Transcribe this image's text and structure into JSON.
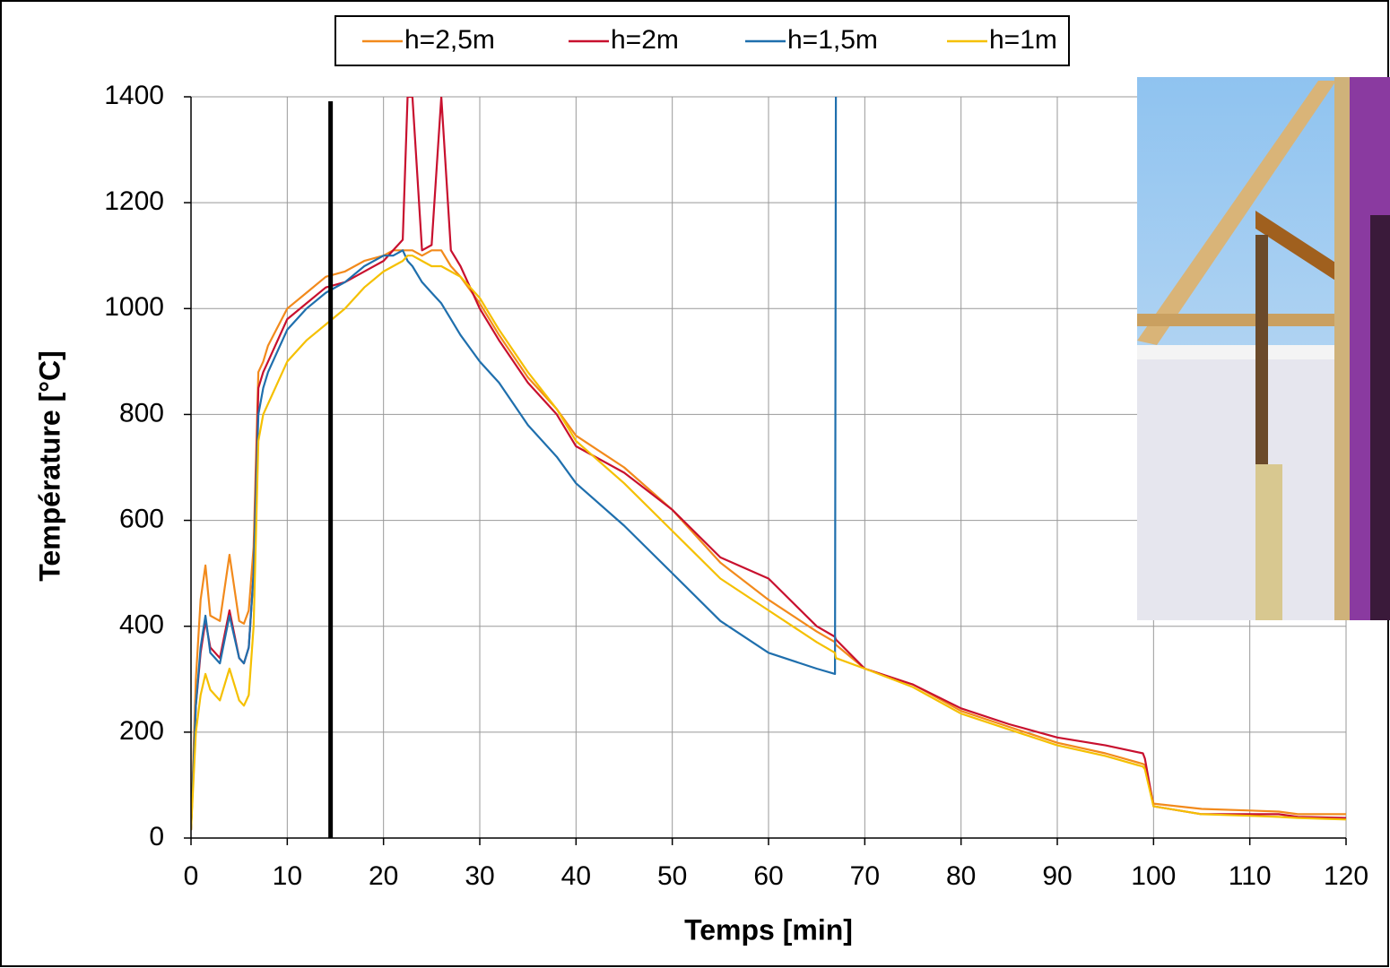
{
  "chart_data": {
    "type": "line",
    "x_label": "Temps [min]",
    "y_label": "Température [°C]",
    "x": [
      0,
      0.5,
      1,
      1.5,
      2,
      3,
      4,
      5,
      5.5,
      6,
      6.5,
      7,
      7.5,
      8,
      10,
      12,
      14,
      16,
      18,
      20,
      21,
      22,
      22.5,
      23,
      24,
      25,
      26,
      27,
      28,
      30,
      32,
      35,
      38,
      40,
      45,
      50,
      55,
      60,
      65,
      66.9,
      67,
      70,
      75,
      80,
      85,
      90,
      95,
      98.9,
      99.1,
      100,
      105,
      110,
      113,
      115,
      120
    ],
    "series": [
      {
        "name": "h=2,5m",
        "color": "#f28a1c",
        "values": [
          15,
          300,
          450,
          515,
          420,
          410,
          535,
          410,
          405,
          430,
          550,
          880,
          900,
          930,
          1000,
          1030,
          1060,
          1070,
          1090,
          1100,
          1110,
          1110,
          1110,
          1110,
          1100,
          1110,
          1110,
          1080,
          1060,
          1010,
          950,
          870,
          810,
          760,
          700,
          620,
          520,
          450,
          390,
          370,
          365,
          320,
          290,
          240,
          210,
          180,
          160,
          140,
          138,
          65,
          55,
          52,
          50,
          45,
          45
        ]
      },
      {
        "name": "h=2m",
        "color": "#c8102e",
        "values": [
          15,
          250,
          350,
          410,
          360,
          340,
          430,
          340,
          330,
          360,
          500,
          850,
          880,
          900,
          980,
          1010,
          1040,
          1050,
          1070,
          1090,
          1110,
          1130,
          1400,
          1400,
          1110,
          1120,
          1400,
          1110,
          1080,
          1000,
          940,
          860,
          800,
          740,
          690,
          620,
          530,
          490,
          400,
          380,
          375,
          320,
          290,
          245,
          215,
          190,
          175,
          160,
          150,
          60,
          45,
          45,
          45,
          40,
          38
        ]
      },
      {
        "name": "h=1,5m",
        "color": "#1f6fad",
        "values": [
          15,
          250,
          360,
          420,
          350,
          330,
          420,
          340,
          330,
          360,
          500,
          800,
          850,
          880,
          960,
          1000,
          1030,
          1050,
          1080,
          1100,
          1100,
          1110,
          1090,
          1080,
          1050,
          1030,
          1010,
          980,
          950,
          900,
          860,
          780,
          720,
          670,
          590,
          500,
          410,
          350,
          320,
          310,
          1400,
          null,
          null,
          null,
          null,
          null,
          null,
          null,
          null,
          null,
          null,
          null,
          null,
          null,
          null
        ]
      },
      {
        "name": "h=1m",
        "color": "#f5c000",
        "values": [
          15,
          200,
          270,
          310,
          280,
          260,
          320,
          260,
          250,
          270,
          400,
          750,
          800,
          820,
          900,
          940,
          970,
          1000,
          1040,
          1070,
          1080,
          1090,
          1100,
          1100,
          1090,
          1080,
          1080,
          1070,
          1060,
          1020,
          960,
          880,
          810,
          750,
          670,
          580,
          490,
          430,
          370,
          350,
          340,
          320,
          285,
          235,
          205,
          175,
          155,
          135,
          130,
          60,
          45,
          42,
          40,
          38,
          35
        ]
      }
    ],
    "xlim": [
      0,
      120
    ],
    "xticks": [
      0,
      10,
      20,
      30,
      40,
      50,
      60,
      70,
      80,
      90,
      100,
      110,
      120
    ],
    "ylim": [
      0,
      1400
    ],
    "yticks": [
      0,
      200,
      400,
      600,
      800,
      1000,
      1200,
      1400
    ],
    "grid": true,
    "annotation_line": {
      "x": 14.5,
      "color": "#000000"
    },
    "legend": "top"
  }
}
